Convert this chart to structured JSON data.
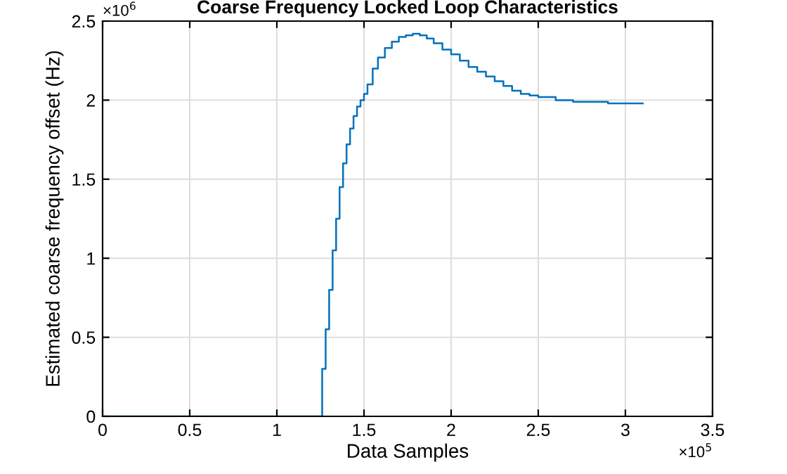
{
  "chart_data": {
    "type": "step",
    "title": "Coarse Frequency Locked Loop Characteristics",
    "xlabel": "Data Samples",
    "ylabel": "Estimated coarse frequency offset (Hz)",
    "x": [
      0,
      1.24,
      1.26,
      1.28,
      1.3,
      1.32,
      1.34,
      1.36,
      1.38,
      1.4,
      1.42,
      1.44,
      1.46,
      1.48,
      1.5,
      1.52,
      1.55,
      1.58,
      1.62,
      1.66,
      1.7,
      1.74,
      1.78,
      1.82,
      1.86,
      1.9,
      1.95,
      2.0,
      2.05,
      2.1,
      2.15,
      2.2,
      2.25,
      2.3,
      2.35,
      2.4,
      2.45,
      2.5,
      2.6,
      2.7,
      2.8,
      2.9,
      3.0,
      3.1
    ],
    "series": [
      {
        "color": "#0072bd",
        "values": [
          0,
          0,
          0.3,
          0.55,
          0.8,
          1.05,
          1.25,
          1.45,
          1.6,
          1.72,
          1.82,
          1.9,
          1.96,
          2.0,
          2.04,
          2.1,
          2.2,
          2.27,
          2.33,
          2.37,
          2.4,
          2.41,
          2.42,
          2.41,
          2.39,
          2.36,
          2.32,
          2.29,
          2.25,
          2.21,
          2.18,
          2.15,
          2.12,
          2.09,
          2.06,
          2.04,
          2.03,
          2.02,
          2.0,
          1.99,
          1.99,
          1.98,
          1.98,
          1.98
        ]
      }
    ],
    "xlim": [
      0,
      3.5
    ],
    "ylim": [
      0,
      2.5
    ],
    "xticks": [
      0,
      0.5,
      1,
      1.5,
      2,
      2.5,
      3,
      3.5
    ],
    "yticks": [
      0,
      0.5,
      1,
      1.5,
      2,
      2.5
    ],
    "annotations": [
      "×10$^{6}$",
      "×10$^{5}$"
    ],
    "grid": true,
    "legend": false
  }
}
